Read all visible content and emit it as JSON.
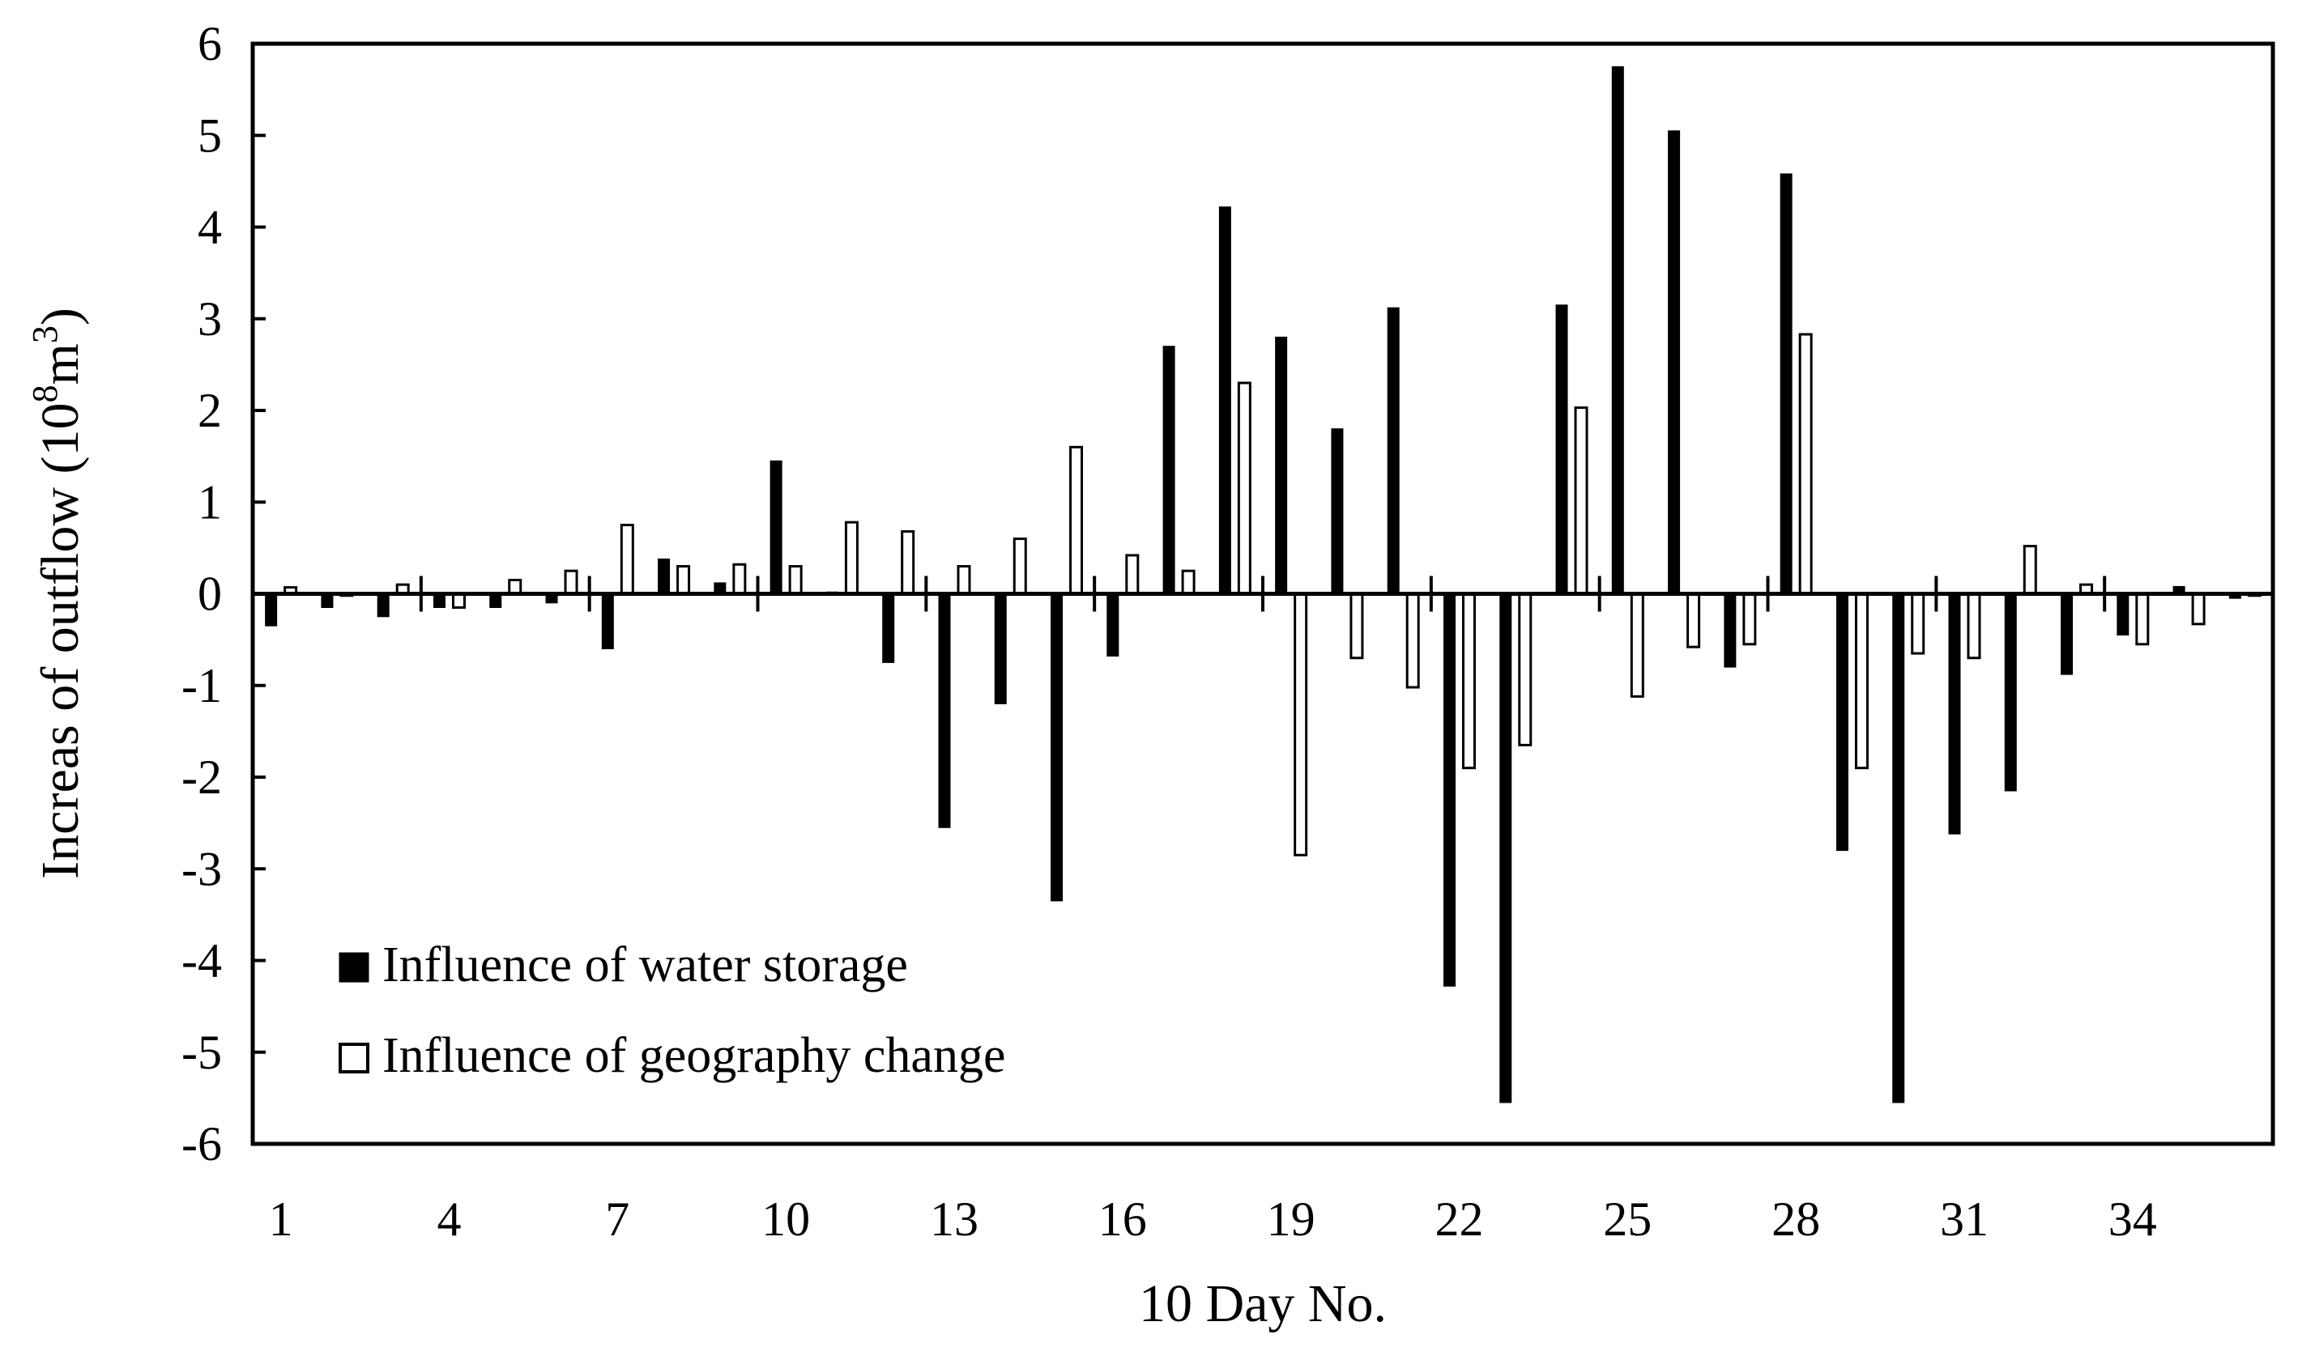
{
  "chart_data": {
    "type": "bar",
    "title": "",
    "xlabel": "10 Day No.",
    "ylabel": {
      "prefix": "Increas of outflow (10",
      "exp1": "8",
      "mid": "m",
      "exp2": "3",
      "suffix": ")"
    },
    "ylim": [
      -6,
      6
    ],
    "yticks": [
      "6",
      "5",
      "4",
      "3",
      "2",
      "1",
      "0",
      "-1",
      "-2",
      "-3",
      "-4",
      "-5",
      "-6"
    ],
    "xticks": [
      "1",
      "4",
      "7",
      "10",
      "13",
      "16",
      "19",
      "22",
      "25",
      "28",
      "31",
      "34"
    ],
    "grid": false,
    "legend_position": "bottom-left",
    "categories": [
      1,
      2,
      3,
      4,
      5,
      6,
      7,
      8,
      9,
      10,
      11,
      12,
      13,
      14,
      15,
      16,
      17,
      18,
      19,
      20,
      21,
      22,
      23,
      24,
      25,
      26,
      27,
      28,
      29,
      30,
      31,
      32,
      33,
      34,
      35,
      36
    ],
    "series": [
      {
        "name": "Influence of water storage",
        "fill": "#000000",
        "values": [
          -0.35,
          -0.15,
          -0.25,
          -0.15,
          -0.15,
          -0.1,
          -0.6,
          0.38,
          0.12,
          1.45,
          0.02,
          -0.75,
          -2.55,
          -1.2,
          -3.35,
          -0.68,
          2.7,
          4.22,
          2.8,
          1.8,
          3.12,
          -4.28,
          -5.55,
          3.15,
          5.75,
          5.05,
          -0.8,
          4.58,
          -2.8,
          -5.55,
          -2.62,
          -2.15,
          -0.88,
          -0.45,
          0.08,
          -0.05
        ]
      },
      {
        "name": "Influence of geography change",
        "fill": "#ffffff",
        "values": [
          0.07,
          -0.02,
          0.1,
          -0.15,
          0.15,
          0.25,
          0.75,
          0.3,
          0.32,
          0.3,
          0.78,
          0.68,
          0.3,
          0.6,
          1.6,
          0.42,
          0.25,
          2.3,
          -2.85,
          -0.7,
          -1.02,
          -1.9,
          -1.65,
          2.03,
          -1.12,
          -0.58,
          -0.55,
          2.83,
          -1.9,
          -0.65,
          -0.7,
          0.52,
          0.1,
          -0.55,
          -0.33,
          -0.02
        ]
      }
    ]
  }
}
